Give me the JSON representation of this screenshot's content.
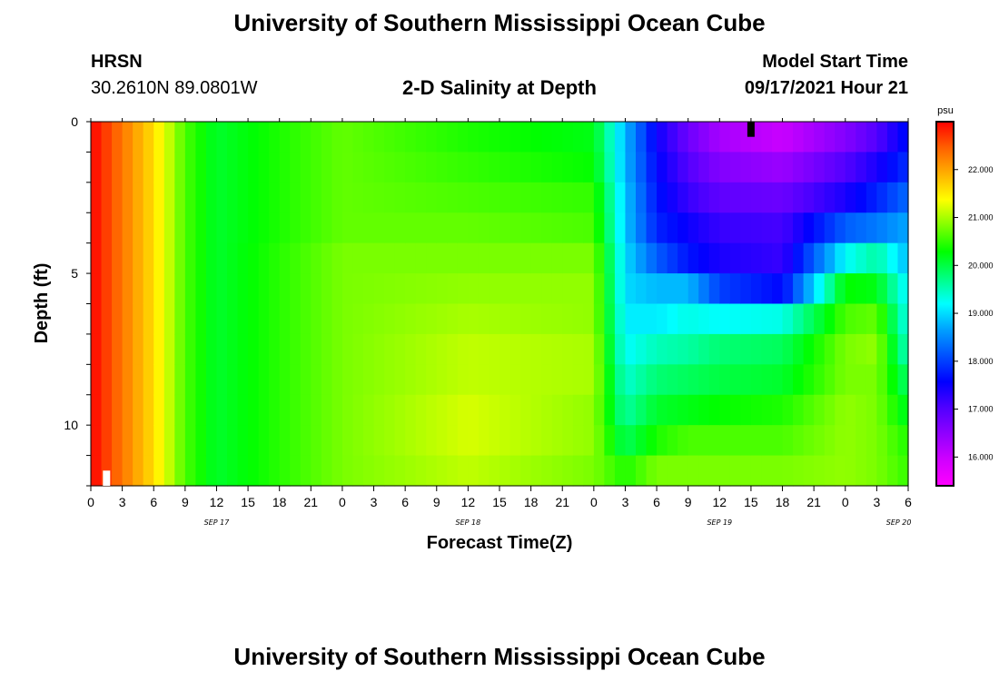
{
  "header": {
    "title_top": "University of Southern Mississippi Ocean Cube",
    "title_bottom": "University of Southern Mississippi Ocean Cube",
    "station": "HRSN",
    "latlon": "30.2610N  89.0801W",
    "plot_title": "2-D Salinity at Depth",
    "model_start_label": "Model Start Time",
    "model_start_value": "09/17/2021 Hour 21"
  },
  "chart_data": {
    "type": "heatmap",
    "title": "2-D Salinity at Depth",
    "xlabel": "Forecast Time(Z)",
    "ylabel": "Depth (ft)",
    "x_tick_labels": [
      "0",
      "3",
      "6",
      "9",
      "12",
      "15",
      "18",
      "21",
      "0",
      "3",
      "6",
      "9",
      "12",
      "15",
      "18",
      "21",
      "0",
      "3",
      "6",
      "9",
      "12",
      "15",
      "18",
      "21",
      "0",
      "3",
      "6"
    ],
    "date_labels": [
      "SEP 17",
      "SEP 18",
      "SEP 19",
      "SEP 20"
    ],
    "y_tick_labels": [
      "0",
      "5",
      "10"
    ],
    "ylim": [
      0,
      12
    ],
    "colorbar": {
      "unit": "psu",
      "tick_labels": [
        "22.000",
        "21.000",
        "20.000",
        "19.000",
        "18.000",
        "17.000",
        "16.000"
      ],
      "range": [
        15.4,
        23.0
      ],
      "colors": [
        "#ff00ff",
        "#d000ff",
        "#9000ff",
        "#5000ff",
        "#0000ff",
        "#0050ff",
        "#00a0ff",
        "#00ffff",
        "#00ff80",
        "#00ff00",
        "#80ff00",
        "#ffff00",
        "#ffb000",
        "#ff6000",
        "#ff0000"
      ]
    },
    "time_axis_hours": [
      0,
      6,
      9,
      12,
      24,
      36,
      48,
      51,
      54,
      57,
      60,
      66,
      72,
      75,
      78
    ],
    "depth_rows_ft": [
      0,
      1,
      2,
      3,
      4,
      5,
      6,
      7,
      8,
      9,
      10,
      11
    ],
    "salinity_profiles": [
      {
        "hour": 0,
        "values": [
          23.0,
          23.0,
          23.0,
          23.0,
          23.0,
          23.0,
          23.0,
          23.0,
          23.0,
          23.0,
          23.0,
          23.0
        ]
      },
      {
        "hour": 6,
        "values": [
          21.6,
          21.6,
          21.6,
          21.6,
          21.6,
          21.6,
          21.6,
          21.6,
          21.6,
          21.6,
          21.6,
          21.6
        ]
      },
      {
        "hour": 9,
        "values": [
          20.6,
          20.6,
          20.6,
          20.6,
          20.6,
          20.6,
          20.6,
          20.6,
          20.6,
          20.6,
          20.6,
          20.6
        ]
      },
      {
        "hour": 12,
        "values": [
          20.1,
          20.1,
          20.1,
          20.1,
          20.1,
          20.1,
          20.1,
          20.1,
          20.1,
          20.1,
          20.1,
          20.1
        ]
      },
      {
        "hour": 24,
        "values": [
          20.7,
          20.7,
          20.7,
          20.7,
          20.8,
          20.8,
          20.8,
          20.8,
          20.8,
          20.8,
          20.8,
          20.8
        ]
      },
      {
        "hour": 36,
        "values": [
          20.4,
          20.5,
          20.6,
          20.7,
          20.8,
          20.9,
          21.0,
          21.1,
          21.1,
          21.2,
          21.2,
          21.1
        ]
      },
      {
        "hour": 48,
        "values": [
          20.2,
          20.3,
          20.5,
          20.6,
          20.8,
          20.9,
          20.9,
          21.0,
          21.0,
          20.9,
          20.9,
          20.8
        ]
      },
      {
        "hour": 51,
        "values": [
          18.8,
          18.8,
          18.9,
          18.9,
          19.0,
          19.0,
          19.1,
          19.2,
          19.4,
          19.6,
          19.9,
          20.4
        ]
      },
      {
        "hour": 54,
        "values": [
          17.5,
          17.6,
          17.7,
          17.8,
          18.2,
          18.8,
          19.1,
          19.5,
          19.8,
          20.1,
          20.4,
          20.8
        ]
      },
      {
        "hour": 57,
        "values": [
          16.8,
          17.0,
          17.2,
          17.5,
          17.7,
          18.8,
          19.3,
          19.6,
          19.9,
          20.2,
          20.6,
          20.8
        ]
      },
      {
        "hour": 60,
        "values": [
          16.3,
          16.6,
          16.9,
          17.2,
          17.4,
          18.0,
          19.2,
          19.8,
          20.0,
          20.3,
          20.6,
          20.8
        ]
      },
      {
        "hour": 66,
        "values": [
          16.0,
          16.4,
          16.8,
          17.1,
          17.2,
          17.6,
          19.3,
          19.9,
          20.1,
          20.4,
          20.6,
          20.8
        ]
      },
      {
        "hour": 72,
        "values": [
          16.6,
          17.0,
          17.4,
          18.2,
          19.2,
          20.3,
          20.6,
          20.8,
          20.8,
          20.9,
          20.9,
          20.9
        ]
      },
      {
        "hour": 75,
        "values": [
          17.0,
          17.4,
          17.8,
          18.4,
          19.6,
          20.2,
          20.7,
          20.9,
          20.8,
          20.8,
          20.8,
          20.8
        ]
      },
      {
        "hour": 78,
        "values": [
          17.7,
          17.9,
          18.3,
          18.7,
          18.8,
          19.1,
          19.2,
          19.4,
          19.8,
          20.1,
          20.4,
          20.5
        ]
      }
    ],
    "markers": [
      {
        "type": "white-bar",
        "hour": 1.5,
        "depth_range": [
          11.5,
          12
        ]
      },
      {
        "type": "black-bar",
        "hour": 63,
        "depth_range": [
          0,
          0.5
        ]
      }
    ]
  }
}
